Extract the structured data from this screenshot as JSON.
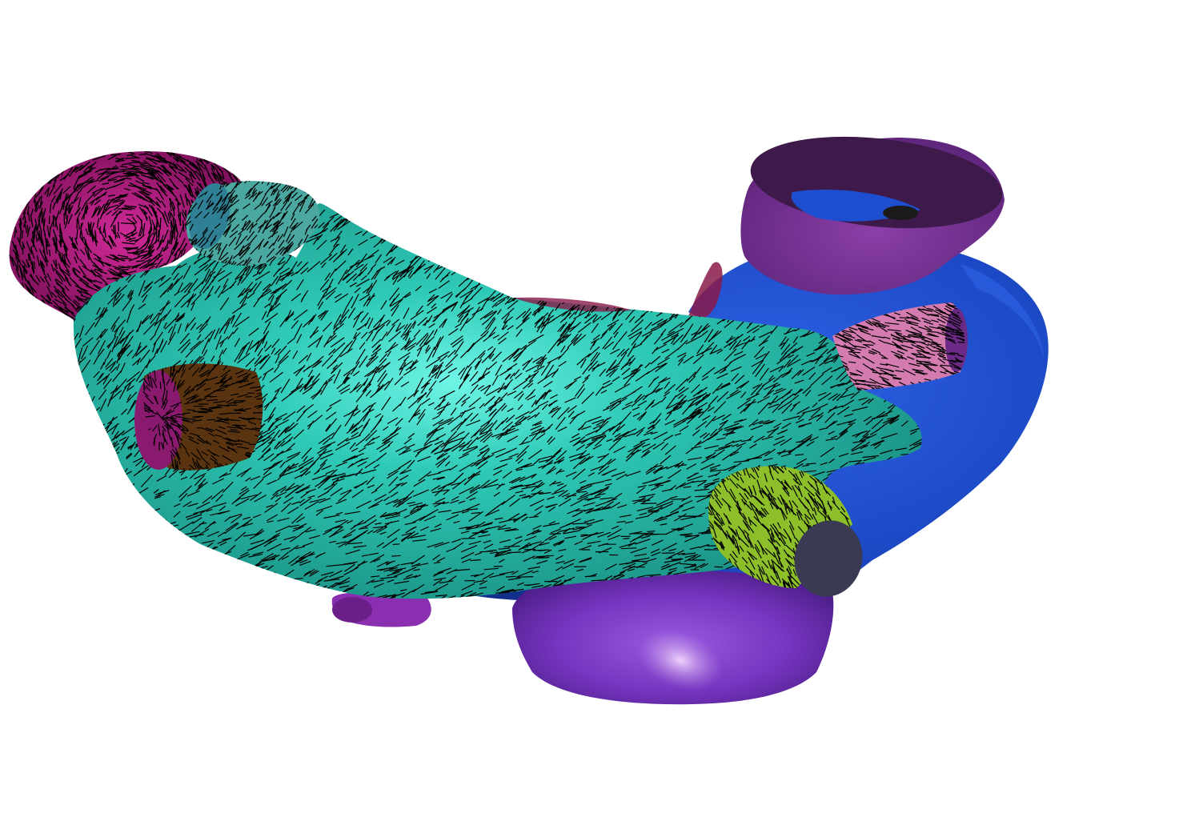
{
  "scene": {
    "background": "#ffffff",
    "regions": [
      {
        "id": "left-atrium-body",
        "name": "atrial-body",
        "color": "#2ec7b4"
      },
      {
        "id": "appendage",
        "name": "appendage",
        "color": "#b0177e"
      },
      {
        "id": "right-atrium",
        "name": "right-atrium",
        "color": "#1d4ecf"
      },
      {
        "id": "svc",
        "name": "superior-vena-cava",
        "color": "#6a2a85"
      },
      {
        "id": "ivc",
        "name": "inferior-vena-cava",
        "color": "#7030b8"
      },
      {
        "id": "lspv",
        "name": "left-superior-pulmonary-vein",
        "color": "#5a3410"
      },
      {
        "id": "lipv",
        "name": "left-inferior-pulmonary-vein",
        "color": "#4a8c9a"
      },
      {
        "id": "rspv",
        "name": "right-superior-pulmonary-vein",
        "color": "#d47bb0"
      },
      {
        "id": "ripv",
        "name": "right-inferior-pulmonary-vein",
        "color": "#8cbf2a"
      },
      {
        "id": "cs",
        "name": "coronary-sinus",
        "color": "#8a2fb0"
      }
    ],
    "fiber_color": "#000000"
  }
}
